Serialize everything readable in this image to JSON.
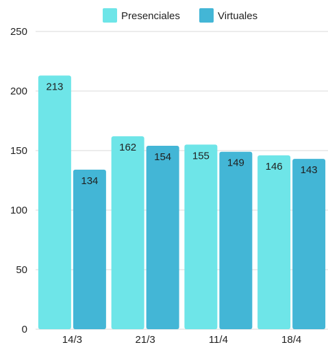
{
  "chart_data": {
    "type": "bar",
    "categories": [
      "14/3",
      "21/3",
      "11/4",
      "18/4"
    ],
    "series": [
      {
        "name": "Presenciales",
        "color": "#6ee5e8",
        "values": [
          213,
          162,
          155,
          146
        ]
      },
      {
        "name": "Virtuales",
        "color": "#43b6d6",
        "values": [
          134,
          154,
          149,
          143
        ]
      }
    ],
    "ylim": [
      0,
      250
    ],
    "yticks": [
      0,
      50,
      100,
      150,
      200,
      250
    ],
    "grid": true,
    "grid_color": "#d9d9d9",
    "legend_position": "top-center",
    "data_labels": true
  }
}
